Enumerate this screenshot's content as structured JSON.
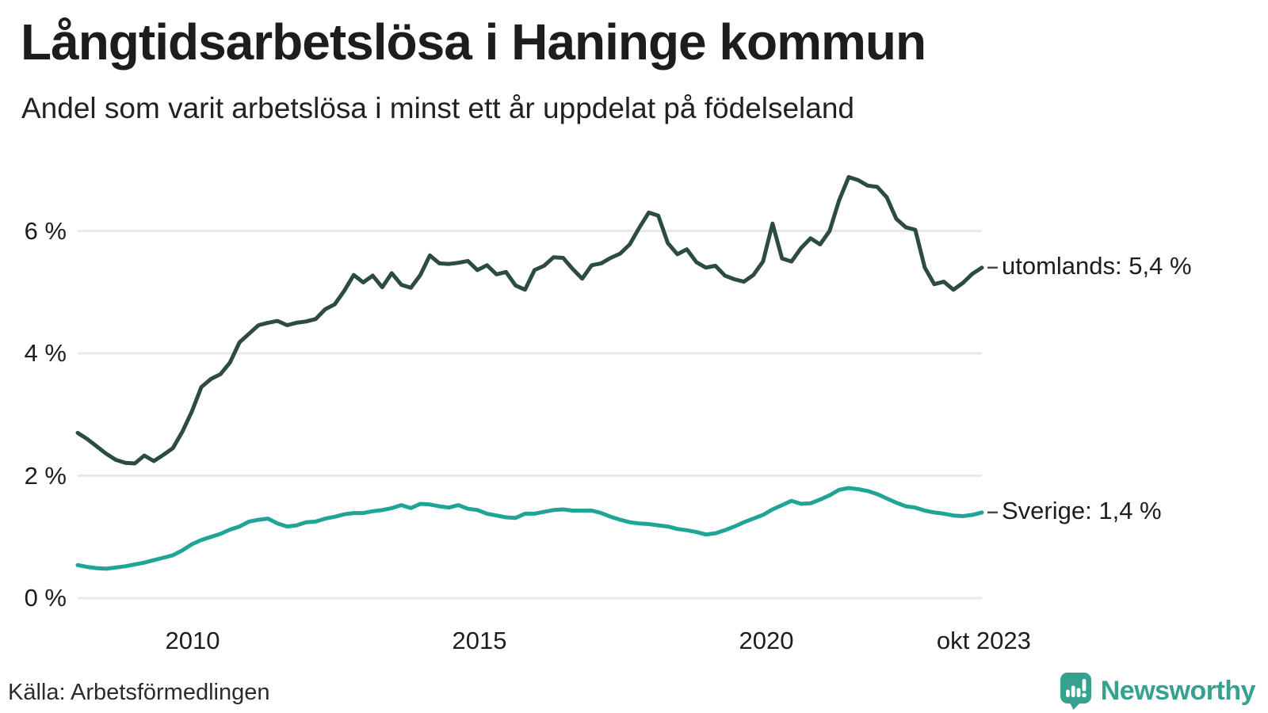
{
  "footer": {
    "source": "Källa: Arbetsförmedlingen",
    "brand": "Newsworthy"
  },
  "colors": {
    "utomlands_line": "#2c4b43",
    "sverige_line": "#1fa496",
    "grid": "#e9e9ec",
    "end_dash": "#4a4a4a",
    "brand_teal": "#35a18e",
    "background": "#ffffff"
  },
  "chart_data": {
    "type": "line",
    "title": "Långtidsarbetslösa i Haninge kommun",
    "subtitle": "Andel som varit arbetslösa i minst ett år uppdelat på födelseland",
    "unit": "%",
    "x_start": "jan 2008",
    "x_end": "okt 2023",
    "interval_months": 2,
    "ylim": [
      0,
      7.2
    ],
    "grid": "horizontal",
    "legend_position": "end-of-line-labels",
    "y_ticks": [
      {
        "value": 0,
        "label": "0 %"
      },
      {
        "value": 2,
        "label": "2 %"
      },
      {
        "value": 4,
        "label": "4 %"
      },
      {
        "value": 6,
        "label": "6 %"
      }
    ],
    "x_ticks": [
      {
        "year": 2010,
        "label": "2010"
      },
      {
        "year": 2015,
        "label": "2015"
      },
      {
        "year": 2020,
        "label": "2020"
      },
      {
        "year": 2023.79,
        "label": "okt 2023"
      }
    ],
    "series": [
      {
        "name": "utomlands",
        "end_label": "utomlands: 5,4 %",
        "end_value": "5,4 %",
        "color": "#2c4b43",
        "values": [
          2.7,
          2.6,
          2.48,
          2.36,
          2.26,
          2.21,
          2.2,
          2.33,
          2.24,
          2.34,
          2.45,
          2.72,
          3.05,
          3.45,
          3.58,
          3.66,
          3.85,
          4.18,
          4.32,
          4.46,
          4.5,
          4.53,
          4.46,
          4.5,
          4.52,
          4.56,
          4.72,
          4.8,
          5.02,
          5.28,
          5.16,
          5.27,
          5.08,
          5.31,
          5.12,
          5.07,
          5.28,
          5.6,
          5.47,
          5.46,
          5.48,
          5.51,
          5.36,
          5.44,
          5.29,
          5.33,
          5.11,
          5.04,
          5.36,
          5.43,
          5.57,
          5.56,
          5.38,
          5.22,
          5.44,
          5.47,
          5.56,
          5.63,
          5.78,
          6.05,
          6.3,
          6.25,
          5.8,
          5.62,
          5.7,
          5.49,
          5.4,
          5.43,
          5.27,
          5.21,
          5.17,
          5.28,
          5.5,
          6.12,
          5.55,
          5.5,
          5.72,
          5.88,
          5.78,
          6.0,
          6.5,
          6.88,
          6.83,
          6.74,
          6.72,
          6.55,
          6.2,
          6.06,
          6.02,
          5.4,
          5.13,
          5.17,
          5.04,
          5.15,
          5.3,
          5.4
        ]
      },
      {
        "name": "Sverige",
        "end_label": "Sverige: 1,4 %",
        "end_value": "1,4 %",
        "color": "#1fa496",
        "values": [
          0.54,
          0.51,
          0.49,
          0.48,
          0.5,
          0.52,
          0.55,
          0.58,
          0.62,
          0.66,
          0.7,
          0.78,
          0.88,
          0.95,
          1.0,
          1.05,
          1.12,
          1.17,
          1.25,
          1.28,
          1.3,
          1.22,
          1.17,
          1.19,
          1.24,
          1.25,
          1.3,
          1.33,
          1.37,
          1.39,
          1.39,
          1.42,
          1.44,
          1.47,
          1.52,
          1.47,
          1.54,
          1.53,
          1.5,
          1.48,
          1.52,
          1.46,
          1.44,
          1.38,
          1.35,
          1.32,
          1.31,
          1.38,
          1.38,
          1.41,
          1.44,
          1.45,
          1.43,
          1.43,
          1.43,
          1.39,
          1.33,
          1.28,
          1.24,
          1.22,
          1.21,
          1.19,
          1.17,
          1.13,
          1.11,
          1.08,
          1.04,
          1.06,
          1.11,
          1.17,
          1.24,
          1.3,
          1.36,
          1.45,
          1.52,
          1.59,
          1.54,
          1.55,
          1.61,
          1.68,
          1.77,
          1.8,
          1.78,
          1.75,
          1.7,
          1.63,
          1.56,
          1.5,
          1.48,
          1.43,
          1.4,
          1.38,
          1.35,
          1.34,
          1.36,
          1.4
        ]
      }
    ]
  }
}
